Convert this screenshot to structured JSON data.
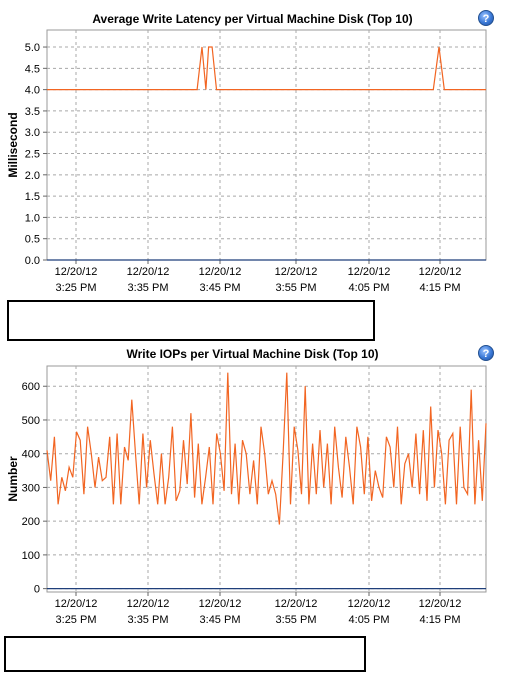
{
  "charts": [
    {
      "title": "Average Write Latency per Virtual Machine Disk (Top 10)",
      "help_icon": "help-icon",
      "chart_data": {
        "type": "line",
        "ylabel": "Millisecond",
        "ylim": [
          0,
          5.4
        ],
        "yticks": [
          "0.0",
          "0.5",
          "1.0",
          "1.5",
          "2.0",
          "2.5",
          "3.0",
          "3.5",
          "4.0",
          "4.5",
          "5.0"
        ],
        "xlim": [
          0,
          100
        ],
        "xticks": [
          {
            "date": "12/20/12",
            "time": "3:25 PM"
          },
          {
            "date": "12/20/12",
            "time": "3:35 PM"
          },
          {
            "date": "12/20/12",
            "time": "3:45 PM"
          },
          {
            "date": "12/20/12",
            "time": "3:55 PM"
          },
          {
            "date": "12/20/12",
            "time": "4:05 PM"
          },
          {
            "date": "12/20/12",
            "time": "4:15 PM"
          }
        ],
        "grid": true,
        "series": [
          {
            "color": "#f26522",
            "x": [
              0,
              34.2,
              35.3,
              36.2,
              36.8,
              37.6,
              38.6,
              88.0,
              89.3,
              90.5,
              100
            ],
            "y": [
              4,
              4,
              5,
              4,
              5,
              5,
              4,
              4,
              5,
              4,
              4
            ]
          },
          {
            "color": "#1f3f7a",
            "x": [
              0,
              100
            ],
            "y": [
              0,
              0
            ]
          }
        ]
      }
    },
    {
      "title": "Write IOPs per Virtual Machine Disk (Top 10)",
      "help_icon": "help-icon",
      "chart_data": {
        "type": "line",
        "ylabel": "Number",
        "ylim": [
          -10,
          660
        ],
        "yticks": [
          "0",
          "100",
          "200",
          "300",
          "400",
          "500",
          "600"
        ],
        "xlim": [
          0,
          100
        ],
        "xticks": [
          {
            "date": "12/20/12",
            "time": "3:25 PM"
          },
          {
            "date": "12/20/12",
            "time": "3:35 PM"
          },
          {
            "date": "12/20/12",
            "time": "3:45 PM"
          },
          {
            "date": "12/20/12",
            "time": "3:55 PM"
          },
          {
            "date": "12/20/12",
            "time": "4:05 PM"
          },
          {
            "date": "12/20/12",
            "time": "4:15 PM"
          }
        ],
        "grid": true,
        "series": [
          {
            "color": "#f26522",
            "y": [
              410,
              320,
              450,
              250,
              330,
              290,
              360,
              330,
              465,
              440,
              280,
              480,
              400,
              300,
              390,
              320,
              330,
              450,
              250,
              460,
              250,
              420,
              380,
              560,
              400,
              250,
              460,
              300,
              440,
              340,
              250,
              400,
              250,
              330,
              480,
              260,
              290,
              440,
              310,
              520,
              270,
              430,
              250,
              330,
              420,
              250,
              460,
              400,
              290,
              640,
              280,
              430,
              250,
              440,
              400,
              280,
              380,
              250,
              480,
              400,
              280,
              320,
              280,
              190,
              400,
              640,
              250,
              480,
              410,
              280,
              600,
              250,
              430,
              280,
              470,
              300,
              430,
              250,
              480,
              360,
              270,
              450,
              360,
              250,
              480,
              420,
              280,
              450,
              260,
              350,
              300,
              270,
              450,
              420,
              300,
              480,
              250,
              370,
              400,
              300,
              460,
              280,
              470,
              260,
              540,
              300,
              470,
              400,
              250,
              440,
              460,
              250,
              480,
              300,
              280,
              590,
              250,
              440,
              260,
              490
            ]
          },
          {
            "color": "#1f3f7a",
            "y": [
              0,
              0
            ]
          }
        ]
      }
    }
  ]
}
